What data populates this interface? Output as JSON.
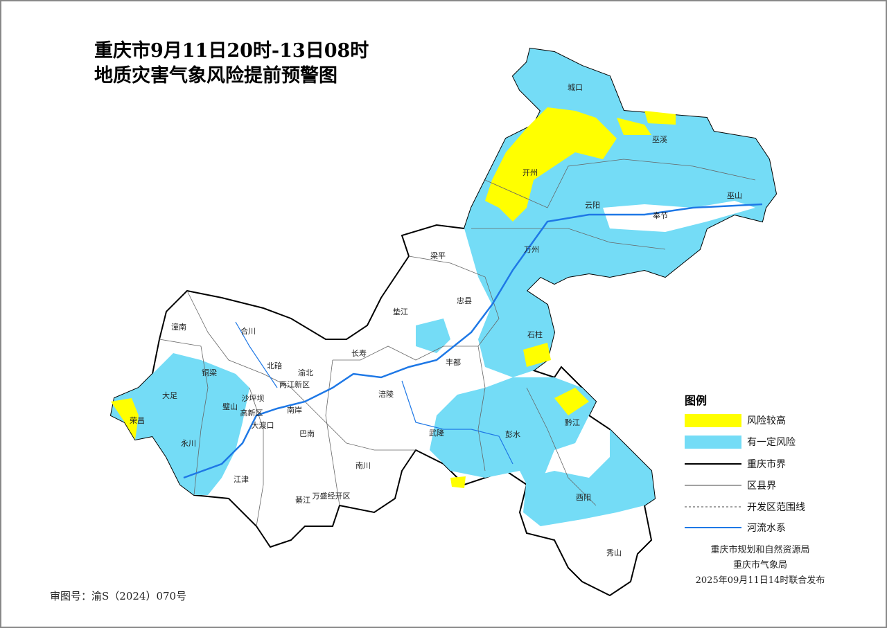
{
  "title": [
    "重庆市9月11日20时-13日08时",
    "地质灾害气象风险提前预警图"
  ],
  "districts": [
    "城口",
    "巫溪",
    "开州",
    "云阳",
    "奉节",
    "巫山",
    "万州",
    "梁平",
    "忠县",
    "垫江",
    "石柱",
    "长寿",
    "丰都",
    "涪陵",
    "武隆",
    "彭水",
    "黔江",
    "酉阳",
    "秀山",
    "潼南",
    "合川",
    "铜梁",
    "大足",
    "荣昌",
    "永川",
    "璧山",
    "北碚",
    "渝北",
    "两江新区",
    "沙坪坝",
    "高新区",
    "大渡口",
    "南岸",
    "巴南",
    "江津",
    "綦江",
    "万盛经开区",
    "南川"
  ],
  "legend": {
    "title": "图例",
    "items": [
      "风险较高",
      "有一定风险",
      "重庆市界",
      "区县界",
      "开发区范围线",
      "河流水系"
    ]
  },
  "publisher": [
    "重庆市规划和自然资源局",
    "重庆市气象局",
    "2025年09月11日14时联合发布"
  ],
  "approval": "审图号：渝S（2024）070号"
}
